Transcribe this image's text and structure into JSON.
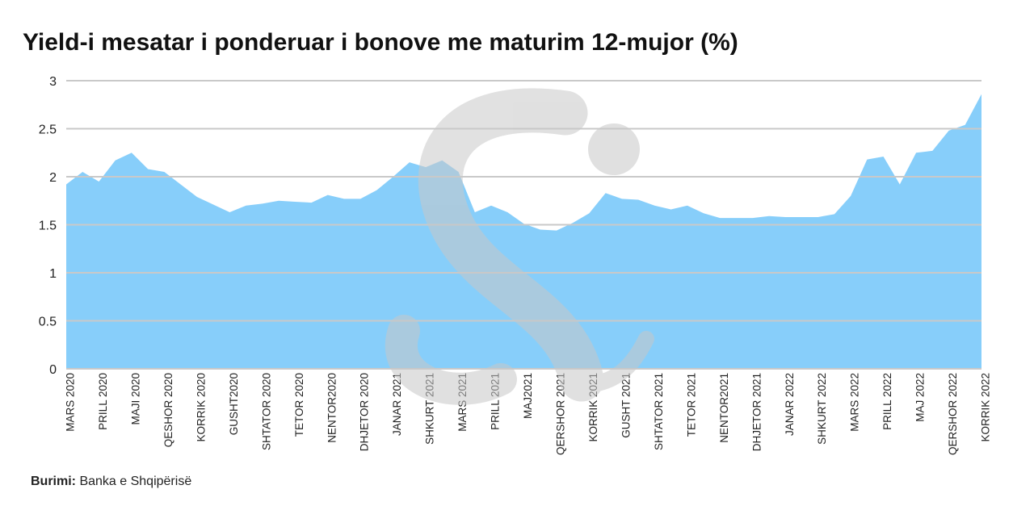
{
  "chart_data": {
    "type": "area",
    "title": "Yield-i mesatar i ponderuar i bonove me maturim 12-mujor (%)",
    "source_label": "Burimi:",
    "source": "Banka e Shqipërisë",
    "categories": [
      "MARS 2020",
      null,
      "PRILL 2020",
      null,
      "MAJI 2020",
      null,
      "QESHOR 2020",
      null,
      "KORRIK 2020",
      null,
      "GUSHT2020",
      null,
      "SHTATOR 2020",
      null,
      "TETOR 2020",
      null,
      "NENTOR2020",
      null,
      "DHJETOR 2020",
      null,
      "JANAR 2021",
      null,
      "SHKURT 2021",
      null,
      "MARS 2021",
      null,
      "PRILL 2021",
      null,
      "MAJ2021",
      null,
      "QERSHOR 2021",
      null,
      "KORRIK 2021",
      null,
      "GUSHT 2021",
      null,
      "SHTATOR 2021",
      null,
      "TETOR 2021",
      null,
      "NENTOR2021",
      null,
      "DHJETOR 2021",
      null,
      "JANAR 2022",
      null,
      "SHKURT 2022",
      null,
      "MARS 2022",
      null,
      "PRILL 2022",
      null,
      "MAJ 2022",
      null,
      "QERSHOR 2022",
      null,
      "KORRIK 2022"
    ],
    "values": [
      1.92,
      2.05,
      1.95,
      2.17,
      2.25,
      2.08,
      2.05,
      1.92,
      1.79,
      1.71,
      1.63,
      1.7,
      1.72,
      1.75,
      1.74,
      1.73,
      1.81,
      1.77,
      1.77,
      1.86,
      2.0,
      2.15,
      2.1,
      2.17,
      2.05,
      1.63,
      1.7,
      1.63,
      1.51,
      1.45,
      1.44,
      1.52,
      1.62,
      1.83,
      1.77,
      1.76,
      1.7,
      1.66,
      1.7,
      1.62,
      1.57,
      1.57,
      1.57,
      1.59,
      1.58,
      1.58,
      1.58,
      1.61,
      1.8,
      2.18,
      2.21,
      1.92,
      2.25,
      2.27,
      2.48,
      2.54,
      2.86
    ],
    "color": "#87cefa",
    "ylim": [
      0,
      3
    ],
    "yticks": [
      0,
      0.5,
      1,
      1.5,
      2,
      2.5,
      3
    ],
    "grid": true
  }
}
